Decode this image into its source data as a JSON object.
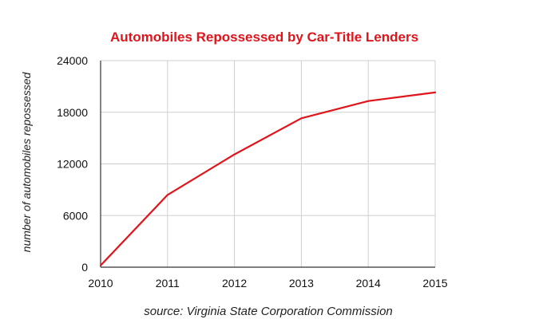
{
  "chart_data": {
    "type": "line",
    "title": "Automobiles Repossessed by Car-Title Lenders",
    "xlabel": "",
    "ylabel": "number of automobiles repossessed",
    "x": [
      2010,
      2011,
      2012,
      2013,
      2014,
      2015
    ],
    "x_tick_labels": [
      "2010",
      "2011",
      "2012",
      "2013",
      "2014",
      "2015"
    ],
    "y_ticks": [
      0,
      6000,
      12000,
      18000,
      24000
    ],
    "y_tick_labels": [
      "0",
      "6000",
      "12000",
      "18000",
      "24000"
    ],
    "ylim": [
      0,
      24000
    ],
    "series": [
      {
        "values": [
          200,
          8400,
          13100,
          17300,
          19300,
          20300
        ]
      }
    ],
    "grid": true,
    "legend": "none",
    "source": "source: Virginia State Corporation Commission",
    "colors": {
      "title": "#e0141b",
      "series": "#e0141b",
      "grid": "#cfcfcf"
    }
  }
}
